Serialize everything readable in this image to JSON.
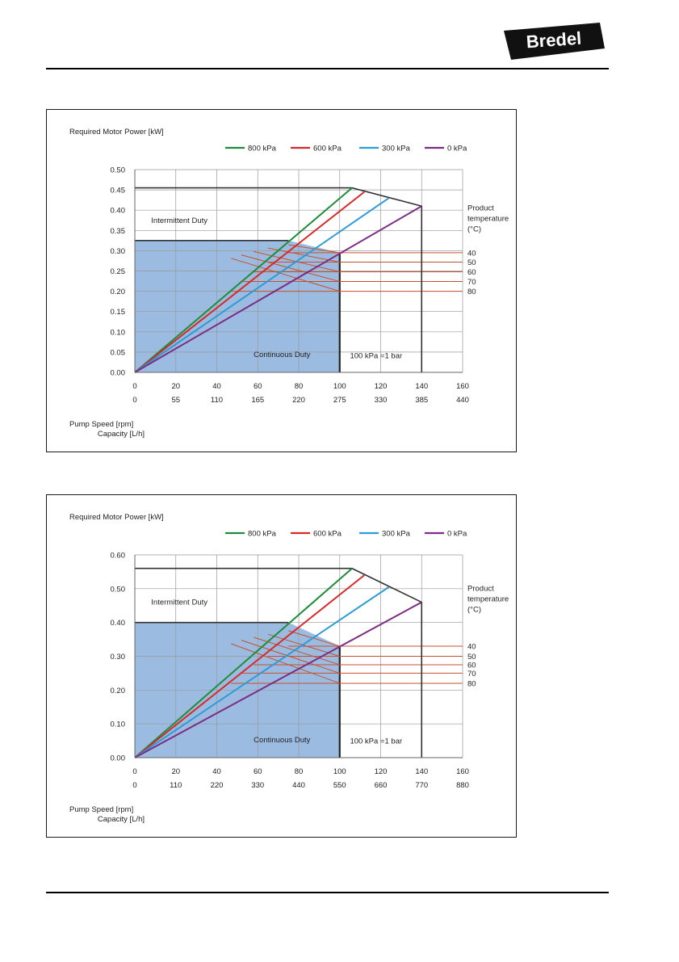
{
  "header": {
    "brand": "Bredel",
    "brand_color": "#111111"
  },
  "series_colors": {
    "800 kPa": "#1e8c3a",
    "600 kPa": "#d42a2a",
    "300 kPa": "#2e9bd6",
    "0 kPa": "#7b2c84"
  },
  "region_color": "#9bbbe0",
  "temp_line_color": "#c8502c",
  "chart_data": [
    {
      "type": "line",
      "title": "Required Motor Power [kW]",
      "xlabel": "Pump Speed [rpm]",
      "x2label": "Capacity [L/h]",
      "ylim": [
        0,
        0.5
      ],
      "yticks": [
        "0.00",
        "0.05",
        "0.10",
        "0.15",
        "0.20",
        "0.25",
        "0.30",
        "0.35",
        "0.40",
        "0.45",
        "0.50"
      ],
      "xlim": [
        0,
        160
      ],
      "xticks": [
        "0",
        "20",
        "40",
        "60",
        "80",
        "100",
        "120",
        "140",
        "160"
      ],
      "x2ticks": [
        "0",
        "55",
        "110",
        "165",
        "220",
        "275",
        "330",
        "385",
        "440"
      ],
      "legend": [
        "800 kPa",
        "600 kPa",
        "300 kPa",
        "0 kPa"
      ],
      "legend_position": "top",
      "grid": true,
      "series": [
        {
          "name": "800 kPa",
          "x": [
            0,
            106
          ],
          "y": [
            0,
            0.455
          ]
        },
        {
          "name": "600 kPa",
          "x": [
            0,
            112
          ],
          "y": [
            0,
            0.445
          ]
        },
        {
          "name": "300 kPa",
          "x": [
            0,
            124
          ],
          "y": [
            0,
            0.43
          ]
        },
        {
          "name": "0 kPa",
          "x": [
            0,
            140
          ],
          "y": [
            0,
            0.41
          ]
        }
      ],
      "intermittent_boundary": {
        "x": [
          0,
          106,
          140,
          140
        ],
        "y": [
          0.455,
          0.455,
          0.41,
          0
        ]
      },
      "continuous_region": {
        "x": [
          0,
          0,
          75,
          100,
          100
        ],
        "y": [
          0,
          0.325,
          0.325,
          0.295,
          0
        ]
      },
      "temperature_lines": {
        "title": "Product temperature (°C)",
        "labels": [
          "40",
          "50",
          "60",
          "70",
          "80"
        ],
        "y": [
          0.295,
          0.272,
          0.248,
          0.224,
          0.2
        ],
        "x_start": [
          75,
          65,
          58,
          52,
          47
        ],
        "x_right": 160
      },
      "annotations": {
        "intermittent": "Intermittent Duty",
        "continuous": "Continuous Duty",
        "bar_note": "100 kPa =1 bar"
      }
    },
    {
      "type": "line",
      "title": "Required Motor Power [kW]",
      "xlabel": "Pump Speed [rpm]",
      "x2label": "Capacity [L/h]",
      "ylim": [
        0,
        0.6
      ],
      "yticks": [
        "0.00",
        "0.10",
        "0.20",
        "0.30",
        "0.40",
        "0.50",
        "0.60"
      ],
      "xlim": [
        0,
        160
      ],
      "xticks": [
        "0",
        "20",
        "40",
        "60",
        "80",
        "100",
        "120",
        "140",
        "160"
      ],
      "x2ticks": [
        "0",
        "110",
        "220",
        "330",
        "440",
        "550",
        "660",
        "770",
        "880"
      ],
      "legend": [
        "800 kPa",
        "600 kPa",
        "300 kPa",
        "0 kPa"
      ],
      "legend_position": "top",
      "grid": true,
      "series": [
        {
          "name": "800 kPa",
          "x": [
            0,
            106
          ],
          "y": [
            0,
            0.56
          ]
        },
        {
          "name": "600 kPa",
          "x": [
            0,
            112
          ],
          "y": [
            0,
            0.54
          ]
        },
        {
          "name": "300 kPa",
          "x": [
            0,
            124
          ],
          "y": [
            0,
            0.505
          ]
        },
        {
          "name": "0 kPa",
          "x": [
            0,
            140
          ],
          "y": [
            0,
            0.46
          ]
        }
      ],
      "intermittent_boundary": {
        "x": [
          0,
          106,
          140,
          140
        ],
        "y": [
          0.56,
          0.56,
          0.46,
          0
        ]
      },
      "continuous_region": {
        "x": [
          0,
          0,
          75,
          100,
          100
        ],
        "y": [
          0,
          0.4,
          0.4,
          0.33,
          0
        ]
      },
      "temperature_lines": {
        "title": "Product temperature (°C)",
        "labels": [
          "40",
          "50",
          "60",
          "70",
          "80"
        ],
        "y": [
          0.33,
          0.3,
          0.275,
          0.25,
          0.22
        ],
        "x_start": [
          75,
          65,
          58,
          52,
          47
        ],
        "x_right": 160
      },
      "annotations": {
        "intermittent": "Intermittent Duty",
        "continuous": "Continuous Duty",
        "bar_note": "100 kPa =1 bar"
      }
    }
  ]
}
